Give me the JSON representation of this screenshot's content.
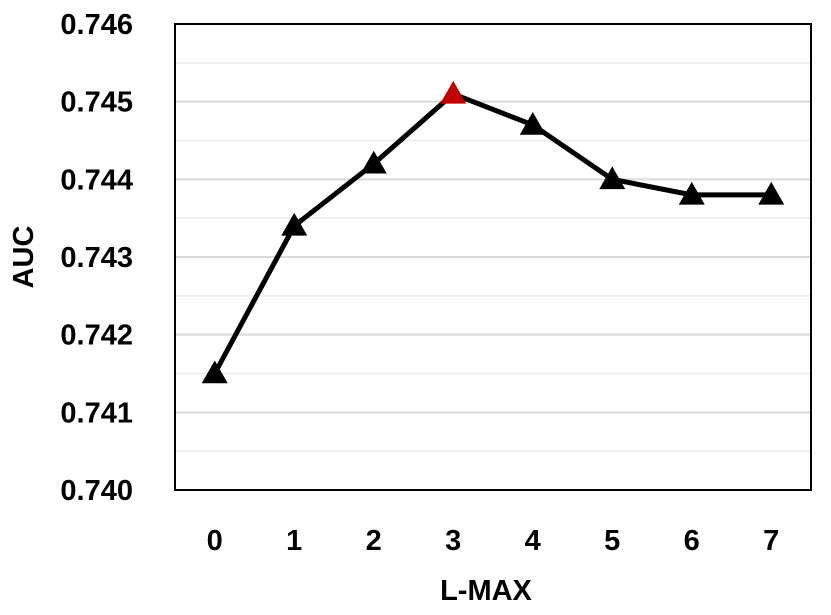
{
  "chart_data": {
    "type": "line",
    "title": "",
    "xlabel": "L-MAX",
    "ylabel": "AUC",
    "x": [
      0,
      1,
      2,
      3,
      4,
      5,
      6,
      7
    ],
    "x_tick_labels": [
      "0",
      "1",
      "2",
      "3",
      "4",
      "5",
      "6",
      "7"
    ],
    "series": [
      {
        "values": [
          0.7415,
          0.7434,
          0.7442,
          0.7451,
          0.7447,
          0.744,
          0.7438,
          0.7438
        ],
        "color": "#000000",
        "marker": "triangle",
        "highlight_index": 3,
        "highlight_color": "#c00000"
      }
    ],
    "ylim": [
      0.74,
      0.746
    ],
    "y_ticks": [
      0.74,
      0.741,
      0.742,
      0.743,
      0.744,
      0.745,
      0.746
    ],
    "y_tick_labels": [
      "0.740",
      "0.741",
      "0.742",
      "0.743",
      "0.744",
      "0.745",
      "0.746"
    ],
    "grid": true,
    "grid_color": "#d9d9d9"
  }
}
